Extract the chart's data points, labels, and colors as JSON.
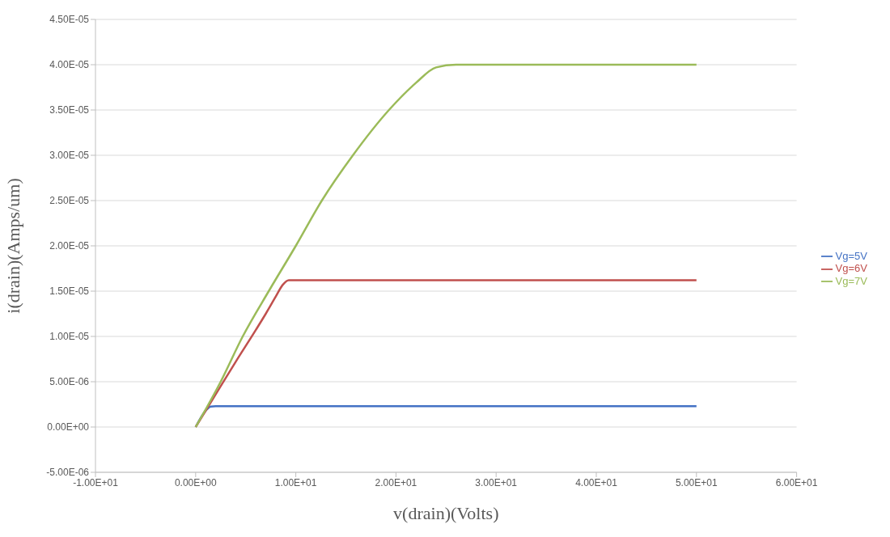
{
  "chart_data": {
    "type": "line",
    "xlabel": "v(drain)(Volts)",
    "ylabel": "i(drain)(Amps/um)",
    "xlim": [
      -10,
      60
    ],
    "xticks": [
      {
        "value": -10,
        "label": "-1.00E+01"
      },
      {
        "value": 0,
        "label": "0.00E+00"
      },
      {
        "value": 10,
        "label": "1.00E+01"
      },
      {
        "value": 20,
        "label": "2.00E+01"
      },
      {
        "value": 30,
        "label": "3.00E+01"
      },
      {
        "value": 40,
        "label": "4.00E+01"
      },
      {
        "value": 50,
        "label": "5.00E+01"
      },
      {
        "value": 60,
        "label": "6.00E+01"
      }
    ],
    "ylim": [
      -5e-06,
      4.5e-05
    ],
    "yticks": [
      {
        "value": -5e-06,
        "label": "-5.00E-06"
      },
      {
        "value": 0,
        "label": "0.00E+00"
      },
      {
        "value": 5e-06,
        "label": "5.00E-06"
      },
      {
        "value": 1e-05,
        "label": "1.00E-05"
      },
      {
        "value": 1.5e-05,
        "label": "1.50E-05"
      },
      {
        "value": 2e-05,
        "label": "2.00E-05"
      },
      {
        "value": 2.5e-05,
        "label": "2.50E-05"
      },
      {
        "value": 3e-05,
        "label": "3.00E-05"
      },
      {
        "value": 3.5e-05,
        "label": "3.50E-05"
      },
      {
        "value": 4e-05,
        "label": "4.00E-05"
      },
      {
        "value": 4.5e-05,
        "label": "4.50E-05"
      }
    ],
    "grid": "y",
    "legend": "right",
    "marker": "none",
    "line_style": "solid",
    "series": [
      {
        "name": "Vg=5V",
        "color": "#4472c4",
        "x": [
          0,
          1,
          1.5,
          2,
          10,
          50
        ],
        "values": [
          0,
          1.8e-06,
          2.25e-06,
          2.3e-06,
          2.3e-06,
          2.3e-06
        ]
      },
      {
        "name": "Vg=6V",
        "color": "#c0504d",
        "x": [
          0,
          2,
          4,
          6,
          7,
          8,
          8.7,
          9.3,
          10,
          50
        ],
        "values": [
          0,
          3.6e-06,
          7.2e-06,
          1.07e-05,
          1.25e-05,
          1.44e-05,
          1.57e-05,
          1.62e-05,
          1.62e-05,
          1.62e-05
        ]
      },
      {
        "name": "Vg=7V",
        "color": "#9bbb59",
        "x": [
          0,
          2.5,
          4.7,
          7.3,
          10,
          12.6,
          15.7,
          19.3,
          22,
          24,
          26,
          50
        ],
        "values": [
          0,
          5e-06,
          1e-05,
          1.5e-05,
          2e-05,
          2.5e-05,
          3e-05,
          3.5e-05,
          3.8e-05,
          3.97e-05,
          4e-05,
          4e-05
        ]
      }
    ]
  }
}
